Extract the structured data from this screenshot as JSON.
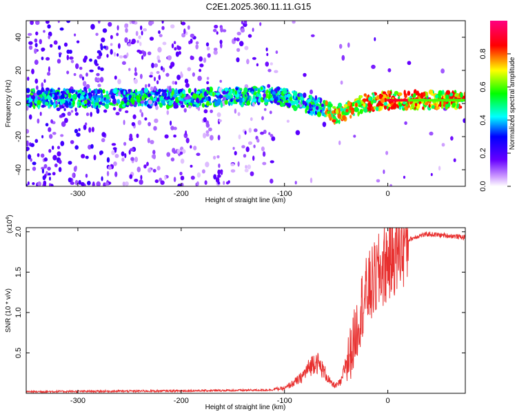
{
  "title": "C2E1.2025.360.11.11.G15",
  "chart_data": [
    {
      "type": "heatmap",
      "name": "spectrogram",
      "xlabel": "Height of straight line (km)",
      "ylabel": "Frequency (Hz)",
      "xlim": [
        -350,
        75
      ],
      "ylim": [
        -50,
        50
      ],
      "xticks": [
        -300,
        -200,
        -100,
        0
      ],
      "yticks": [
        -40,
        -20,
        0,
        20,
        40
      ],
      "colorbar": {
        "label": "Normalized spectral amplitude",
        "range": [
          0,
          1
        ],
        "ticks": [
          0.0,
          0.2,
          0.4,
          0.6,
          0.8
        ],
        "stops": [
          "#ffffff",
          "#cc99ff",
          "#6600ff",
          "#0000ff",
          "#00ffff",
          "#00ff00",
          "#ffff00",
          "#ff0000",
          "#ff0080"
        ]
      },
      "ridge": {
        "x": [
          -350,
          -300,
          -250,
          -200,
          -150,
          -120,
          -100,
          -80,
          -60,
          -50,
          -40,
          -30,
          -20,
          -10,
          0,
          20,
          40,
          75
        ],
        "y": [
          3,
          3,
          3,
          3,
          4,
          5,
          4,
          0,
          -3,
          -7,
          -4,
          -2,
          1,
          1,
          2,
          2,
          2,
          2
        ]
      }
    },
    {
      "type": "line",
      "name": "snr",
      "xlabel": "Height of straight line (km)",
      "ylabel": "SNR (10 * v/v)",
      "multiplier_label": "(x10",
      "multiplier_exp": "4",
      "multiplier_close": ")",
      "xlim": [
        -350,
        75
      ],
      "ylim": [
        0,
        2.05
      ],
      "xticks": [
        -300,
        -200,
        -100,
        0
      ],
      "yticks": [
        "0.5",
        "1.0",
        "1.5",
        "2.0"
      ],
      "ytick_values": [
        0.5,
        1.0,
        1.5,
        2.0
      ],
      "color": "#e8302f",
      "envelope": {
        "x": [
          -350,
          -200,
          -120,
          -100,
          -85,
          -70,
          -60,
          -55,
          -50,
          -45,
          -40,
          -35,
          -30,
          -25,
          -20,
          -15,
          -10,
          -5,
          0,
          10,
          20,
          30,
          40,
          50,
          60,
          75
        ],
        "y": [
          0.02,
          0.03,
          0.04,
          0.05,
          0.15,
          0.35,
          0.2,
          0.1,
          0.08,
          0.12,
          0.35,
          0.55,
          0.8,
          1.1,
          1.25,
          1.35,
          1.45,
          1.55,
          1.65,
          1.8,
          1.9,
          1.95,
          1.97,
          1.96,
          1.95,
          1.93
        ]
      }
    }
  ]
}
